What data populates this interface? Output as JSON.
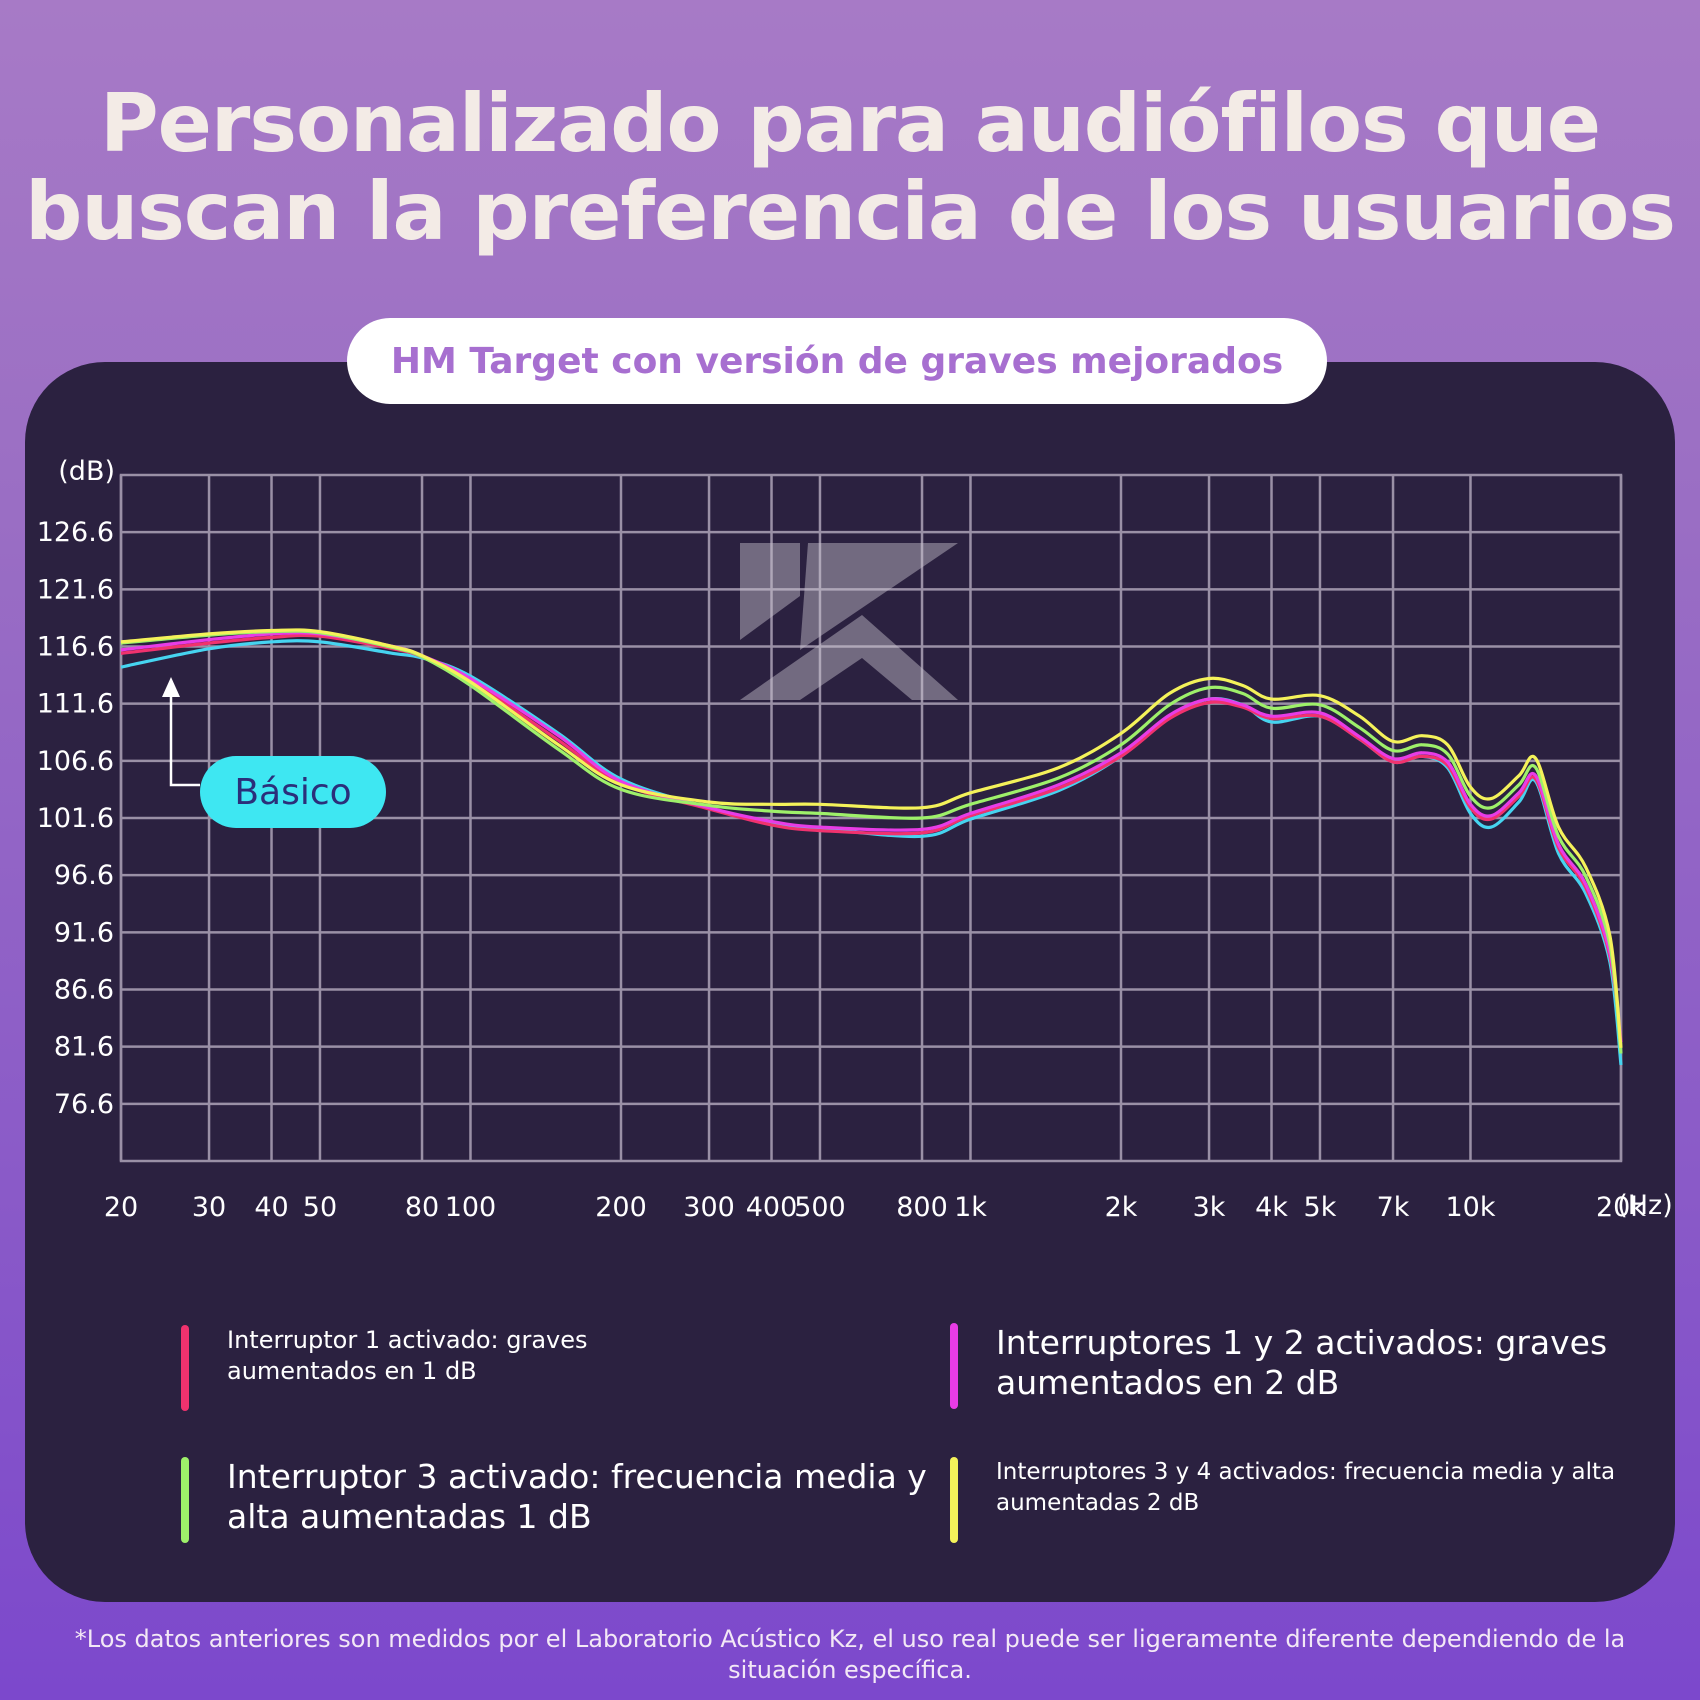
{
  "title": {
    "line1": "Personalizado para audiófilos que",
    "line2": "buscan la preferencia de los usuarios"
  },
  "subtitle": "HM Target con versión de graves mejorados",
  "watermark_icon": "kz-logo-icon",
  "callout": "Básico",
  "footnote": {
    "line1": "*Los datos anteriores son medidos por el Laboratorio Acústico Kz, el uso real puede ser ligeramente diferente dependiendo de la",
    "line2": "situación específica."
  },
  "legend": [
    {
      "text": [
        "Interruptor 1 activado: graves",
        "aumentados en 1 dB"
      ],
      "color": "#f0326e"
    },
    {
      "text": [
        "Interruptores 1 y 2 activados: graves",
        "aumentados en 2 dB"
      ],
      "color": "#e83ce6"
    },
    {
      "text": [
        "Interruptor 3 activado: frecuencia media y",
        "alta aumentadas 1 dB"
      ],
      "color": "#9ef06a"
    },
    {
      "text": [
        "Interruptores 3 y 4 activados: frecuencia media y alta",
        "aumentadas 2 dB"
      ],
      "color": "#f4f25a"
    }
  ],
  "chart_data": {
    "type": "line",
    "title": "HM Target con versión de graves mejorados",
    "xlabel": "(Hz)",
    "ylabel": "(dB)",
    "x_scale": "log",
    "grid": true,
    "xlim": [
      20,
      20000
    ],
    "ylim": [
      71.6,
      131.6
    ],
    "y_ticks": [
      "126.6",
      "121.6",
      "116.6",
      "111.6",
      "106.6",
      "101.6",
      "96.6",
      "91.6",
      "86.6",
      "81.6",
      "76.6"
    ],
    "x_ticks": [
      {
        "value": 20,
        "label": "20"
      },
      {
        "value": 30,
        "label": "30"
      },
      {
        "value": 40,
        "label": "40"
      },
      {
        "value": 50,
        "label": "50"
      },
      {
        "value": 80,
        "label": "80"
      },
      {
        "value": 100,
        "label": "100"
      },
      {
        "value": 200,
        "label": "200"
      },
      {
        "value": 300,
        "label": "300"
      },
      {
        "value": 400,
        "label": "400"
      },
      {
        "value": 500,
        "label": "500"
      },
      {
        "value": 800,
        "label": "800"
      },
      {
        "value": 1000,
        "label": "1k"
      },
      {
        "value": 2000,
        "label": "2k"
      },
      {
        "value": 3000,
        "label": "3k"
      },
      {
        "value": 4000,
        "label": "4k"
      },
      {
        "value": 5000,
        "label": "5k"
      },
      {
        "value": 7000,
        "label": "7k"
      },
      {
        "value": 10000,
        "label": "10k"
      },
      {
        "value": 20000,
        "label": "20k"
      }
    ],
    "series": [
      {
        "name": "Básico",
        "color": "#46d4f0",
        "points": [
          [
            20,
            114.8
          ],
          [
            30,
            116.4
          ],
          [
            40,
            117.0
          ],
          [
            50,
            117.0
          ],
          [
            70,
            116.0
          ],
          [
            80,
            115.6
          ],
          [
            100,
            114.0
          ],
          [
            150,
            109.0
          ],
          [
            200,
            105.0
          ],
          [
            300,
            102.5
          ],
          [
            400,
            101.2
          ],
          [
            500,
            100.7
          ],
          [
            800,
            100.0
          ],
          [
            1000,
            101.5
          ],
          [
            1500,
            104.0
          ],
          [
            2000,
            107.0
          ],
          [
            2500,
            110.5
          ],
          [
            3000,
            112.0
          ],
          [
            3500,
            111.5
          ],
          [
            4000,
            110.0
          ],
          [
            5000,
            110.5
          ],
          [
            6000,
            108.5
          ],
          [
            7000,
            106.5
          ],
          [
            8000,
            107.0
          ],
          [
            9000,
            106.0
          ],
          [
            10000,
            102.0
          ],
          [
            11000,
            100.8
          ],
          [
            12500,
            103.0
          ],
          [
            13500,
            104.8
          ],
          [
            15000,
            98.5
          ],
          [
            17000,
            95.0
          ],
          [
            19000,
            89.0
          ],
          [
            20000,
            80.0
          ]
        ]
      },
      {
        "name": "Interruptor 1 activado: graves aumentados en 1 dB",
        "color": "#f0326e",
        "points": [
          [
            20,
            116.0
          ],
          [
            30,
            116.9
          ],
          [
            40,
            117.4
          ],
          [
            50,
            117.5
          ],
          [
            70,
            116.4
          ],
          [
            80,
            115.7
          ],
          [
            100,
            113.6
          ],
          [
            150,
            108.4
          ],
          [
            200,
            104.6
          ],
          [
            300,
            102.4
          ],
          [
            400,
            101.0
          ],
          [
            500,
            100.5
          ],
          [
            800,
            100.3
          ],
          [
            1000,
            101.8
          ],
          [
            1500,
            104.2
          ],
          [
            2000,
            107.0
          ],
          [
            2500,
            110.3
          ],
          [
            3000,
            111.7
          ],
          [
            3500,
            111.3
          ],
          [
            4000,
            110.3
          ],
          [
            5000,
            110.5
          ],
          [
            6000,
            108.5
          ],
          [
            7000,
            106.5
          ],
          [
            8000,
            107.0
          ],
          [
            9000,
            106.2
          ],
          [
            10000,
            102.5
          ],
          [
            11000,
            101.5
          ],
          [
            12500,
            103.5
          ],
          [
            13500,
            105.0
          ],
          [
            15000,
            99.0
          ],
          [
            17000,
            95.5
          ],
          [
            19000,
            89.5
          ],
          [
            20000,
            82.0
          ]
        ]
      },
      {
        "name": "Interruptores 1 y 2 activados: graves aumentados en 2 dB",
        "color": "#e83ce6",
        "points": [
          [
            20,
            116.3
          ],
          [
            30,
            117.2
          ],
          [
            40,
            117.7
          ],
          [
            50,
            117.7
          ],
          [
            70,
            116.6
          ],
          [
            80,
            115.8
          ],
          [
            100,
            113.8
          ],
          [
            150,
            108.8
          ],
          [
            200,
            104.8
          ],
          [
            300,
            102.5
          ],
          [
            400,
            101.3
          ],
          [
            500,
            100.8
          ],
          [
            800,
            100.6
          ],
          [
            1000,
            102.0
          ],
          [
            1500,
            104.5
          ],
          [
            2000,
            107.3
          ],
          [
            2500,
            110.6
          ],
          [
            3000,
            112.0
          ],
          [
            3500,
            111.5
          ],
          [
            4000,
            110.5
          ],
          [
            5000,
            110.8
          ],
          [
            6000,
            108.7
          ],
          [
            7000,
            106.8
          ],
          [
            8000,
            107.3
          ],
          [
            9000,
            106.5
          ],
          [
            10000,
            102.8
          ],
          [
            11000,
            101.8
          ],
          [
            12500,
            103.8
          ],
          [
            13500,
            105.3
          ],
          [
            15000,
            99.3
          ],
          [
            17000,
            95.8
          ],
          [
            19000,
            89.8
          ],
          [
            20000,
            82.0
          ]
        ]
      },
      {
        "name": "Interruptor 3 activado: frecuencia media y alta aumentadas 1 dB",
        "color": "#9ef06a",
        "points": [
          [
            20,
            116.9
          ],
          [
            30,
            117.6
          ],
          [
            40,
            117.9
          ],
          [
            50,
            117.8
          ],
          [
            70,
            116.5
          ],
          [
            80,
            115.7
          ],
          [
            100,
            113.2
          ],
          [
            150,
            107.6
          ],
          [
            200,
            104.1
          ],
          [
            300,
            102.7
          ],
          [
            400,
            102.2
          ],
          [
            500,
            102.0
          ],
          [
            800,
            101.6
          ],
          [
            1000,
            102.8
          ],
          [
            1500,
            105.1
          ],
          [
            2000,
            108.0
          ],
          [
            2500,
            111.5
          ],
          [
            3000,
            113.0
          ],
          [
            3500,
            112.5
          ],
          [
            4000,
            111.2
          ],
          [
            5000,
            111.5
          ],
          [
            6000,
            109.5
          ],
          [
            7000,
            107.5
          ],
          [
            8000,
            108.0
          ],
          [
            9000,
            107.2
          ],
          [
            10000,
            103.5
          ],
          [
            11000,
            102.5
          ],
          [
            12500,
            104.5
          ],
          [
            13500,
            106.0
          ],
          [
            15000,
            100.0
          ],
          [
            17000,
            96.5
          ],
          [
            19000,
            90.5
          ],
          [
            20000,
            81.0
          ]
        ]
      },
      {
        "name": "Interruptores 3 y 4 activados: frecuencia media y alta aumentadas 2 dB",
        "color": "#f4f25a",
        "points": [
          [
            20,
            117.0
          ],
          [
            30,
            117.7
          ],
          [
            40,
            118.0
          ],
          [
            50,
            117.9
          ],
          [
            70,
            116.6
          ],
          [
            80,
            115.8
          ],
          [
            100,
            113.5
          ],
          [
            150,
            108.0
          ],
          [
            200,
            104.5
          ],
          [
            300,
            103.0
          ],
          [
            400,
            102.8
          ],
          [
            500,
            102.8
          ],
          [
            800,
            102.5
          ],
          [
            1000,
            103.8
          ],
          [
            1500,
            106.0
          ],
          [
            2000,
            109.0
          ],
          [
            2500,
            112.5
          ],
          [
            3000,
            113.8
          ],
          [
            3500,
            113.2
          ],
          [
            4000,
            112.0
          ],
          [
            5000,
            112.3
          ],
          [
            6000,
            110.5
          ],
          [
            7000,
            108.3
          ],
          [
            8000,
            108.8
          ],
          [
            9000,
            108.0
          ],
          [
            10000,
            104.3
          ],
          [
            11000,
            103.3
          ],
          [
            12500,
            105.3
          ],
          [
            13500,
            106.8
          ],
          [
            15000,
            100.8
          ],
          [
            17000,
            97.3
          ],
          [
            19000,
            91.3
          ],
          [
            20000,
            81.5
          ]
        ]
      }
    ]
  }
}
